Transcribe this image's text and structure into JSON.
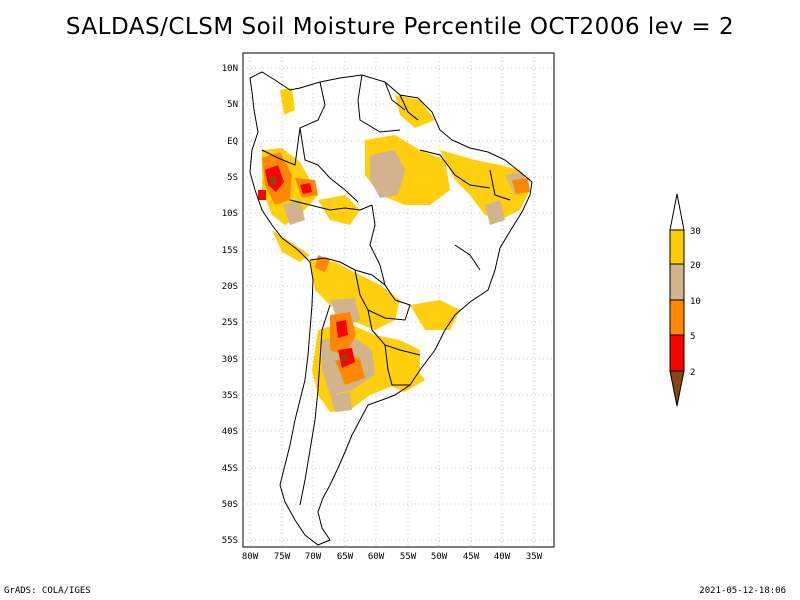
{
  "title": "SALDAS/CLSM Soil Moisture Percentile OCT2006 lev = 2",
  "footer": {
    "left": "GrADS: COLA/IGES",
    "right": "2021-05-12-18:06"
  },
  "axes": {
    "lat_ticks": [
      "10N",
      "5N",
      "EQ",
      "5S",
      "10S",
      "15S",
      "20S",
      "25S",
      "30S",
      "35S",
      "40S",
      "45S",
      "50S",
      "55S"
    ],
    "lon_ticks": [
      "80W",
      "75W",
      "70W",
      "65W",
      "60W",
      "55W",
      "50W",
      "45W",
      "40W",
      "35W"
    ],
    "lon_range": [
      -81,
      -32
    ],
    "lat_range": [
      -56,
      11
    ],
    "gridlines": "dotted"
  },
  "legend": {
    "ticks": [
      "30",
      "20",
      "10",
      "5",
      "2"
    ],
    "bins": [
      {
        "label": "> 30",
        "color": "#ffffff"
      },
      {
        "label": "20-30",
        "color": "#ffcc00"
      },
      {
        "label": "10-20",
        "color": "#d2b48c"
      },
      {
        "label": "5-10",
        "color": "#ff8800"
      },
      {
        "label": "2-5",
        "color": "#ff0000"
      },
      {
        "label": "< 2",
        "color": "#8b4513"
      }
    ]
  },
  "colors": {
    "pct_20_30": "#ffcc00",
    "pct_10_20": "#d2b48c",
    "pct_5_10": "#ff8800",
    "pct_2_5": "#ff0000",
    "pct_lt2": "#8b4513",
    "border": "#000000"
  }
}
